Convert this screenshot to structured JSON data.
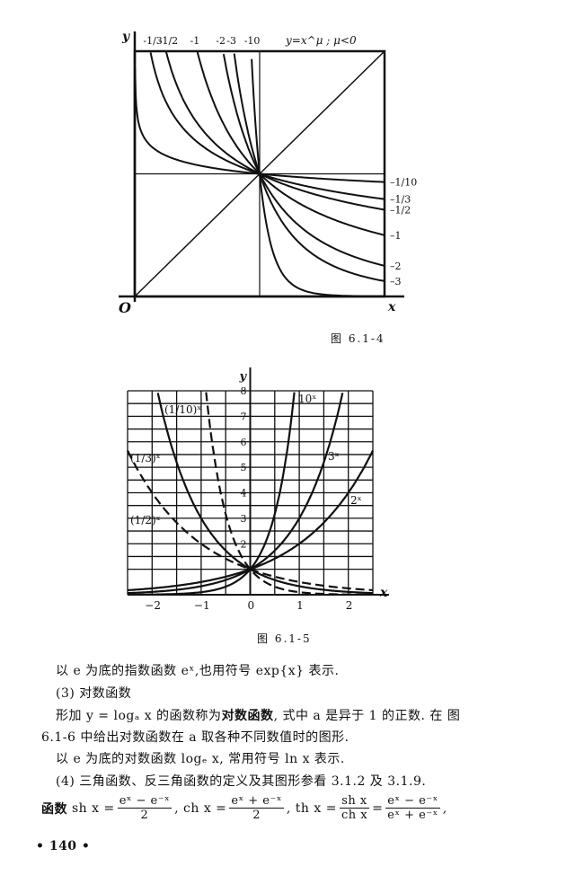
{
  "figures": [
    {
      "caption": "图  6.1-4"
    },
    {
      "caption": "图  6.1-5"
    }
  ],
  "chart_data": [
    {
      "type": "line",
      "title": "y=x^μ ; μ<0",
      "xlabel": "x",
      "ylabel": "y",
      "origin_label": "O",
      "xlim": [
        0,
        2
      ],
      "ylim": [
        0,
        2
      ],
      "grid": false,
      "reference_lines": [
        "y=x",
        "x=1",
        "y=1"
      ],
      "series": [
        {
          "name": "-1/10",
          "exponent": -0.1
        },
        {
          "name": "-1/3",
          "exponent": -0.3333
        },
        {
          "name": "-1/2",
          "exponent": -0.5
        },
        {
          "name": "-1",
          "exponent": -1
        },
        {
          "name": "-2",
          "exponent": -2
        },
        {
          "name": "-3",
          "exponent": -3
        },
        {
          "name": "-10",
          "exponent": -10
        }
      ],
      "top_labels": [
        "-1/3",
        "-1/2",
        "-1",
        "-2",
        "-3",
        "-10"
      ],
      "right_labels": [
        "-1/10",
        "-1/3",
        "-1/2",
        "-1",
        "-2",
        "-3"
      ]
    },
    {
      "type": "line",
      "xlabel": "x",
      "ylabel": "y",
      "xlim": [
        -2.5,
        2.5
      ],
      "ylim": [
        0,
        8
      ],
      "grid": true,
      "xticks": [
        "-2",
        "-1",
        "0",
        "1",
        "2"
      ],
      "yticks": [
        "2",
        "3",
        "4",
        "5",
        "6",
        "7",
        "8"
      ],
      "series": [
        {
          "name": "10^x",
          "base": 10,
          "dashed": false
        },
        {
          "name": "3^x",
          "base": 3,
          "dashed": false
        },
        {
          "name": "2^x",
          "base": 2,
          "dashed": false
        },
        {
          "name": "(1/10)^x",
          "base": 0.1,
          "dashed": true
        },
        {
          "name": "(1/3)^x",
          "base": 0.3333,
          "dashed": false
        },
        {
          "name": "(1/2)^x",
          "base": 0.5,
          "dashed": true
        }
      ]
    }
  ],
  "text": {
    "line1": "以 e 为底的指数函数 eˣ,也用符号 exp{x} 表示.",
    "line2": "(3) 对数函数",
    "line3a": "形加 y = logₐ x 的函数称为",
    "line3b": "对数函数",
    "line3c": ", 式中 a 是异于 1 的正数.   在 图",
    "line4": "6.1-6 中给出对数函数在 a 取各种不同数值时的图形.",
    "line5": "以 e 为底的对数函数 logₑ x, 常用符号 ln x 表示.",
    "line6": "(4) 三角函数、反三角函数的定义及其图形参看 3.1.2 及 3.1.9.",
    "formula": {
      "lead": "函数",
      "sh": "sh x =",
      "sh_num": "eˣ − e⁻ˣ",
      "sh_den": "2",
      "ch": ", ch x =",
      "ch_num": "eˣ + e⁻ˣ",
      "ch_den": "2",
      "th": ", th x =",
      "th_num": "sh x",
      "th_den": "ch x",
      "eq": "=",
      "th2_num": "eˣ − e⁻ˣ",
      "th2_den": "eˣ + e⁻ˣ",
      "end": ","
    },
    "page_number": "• 140 •"
  }
}
